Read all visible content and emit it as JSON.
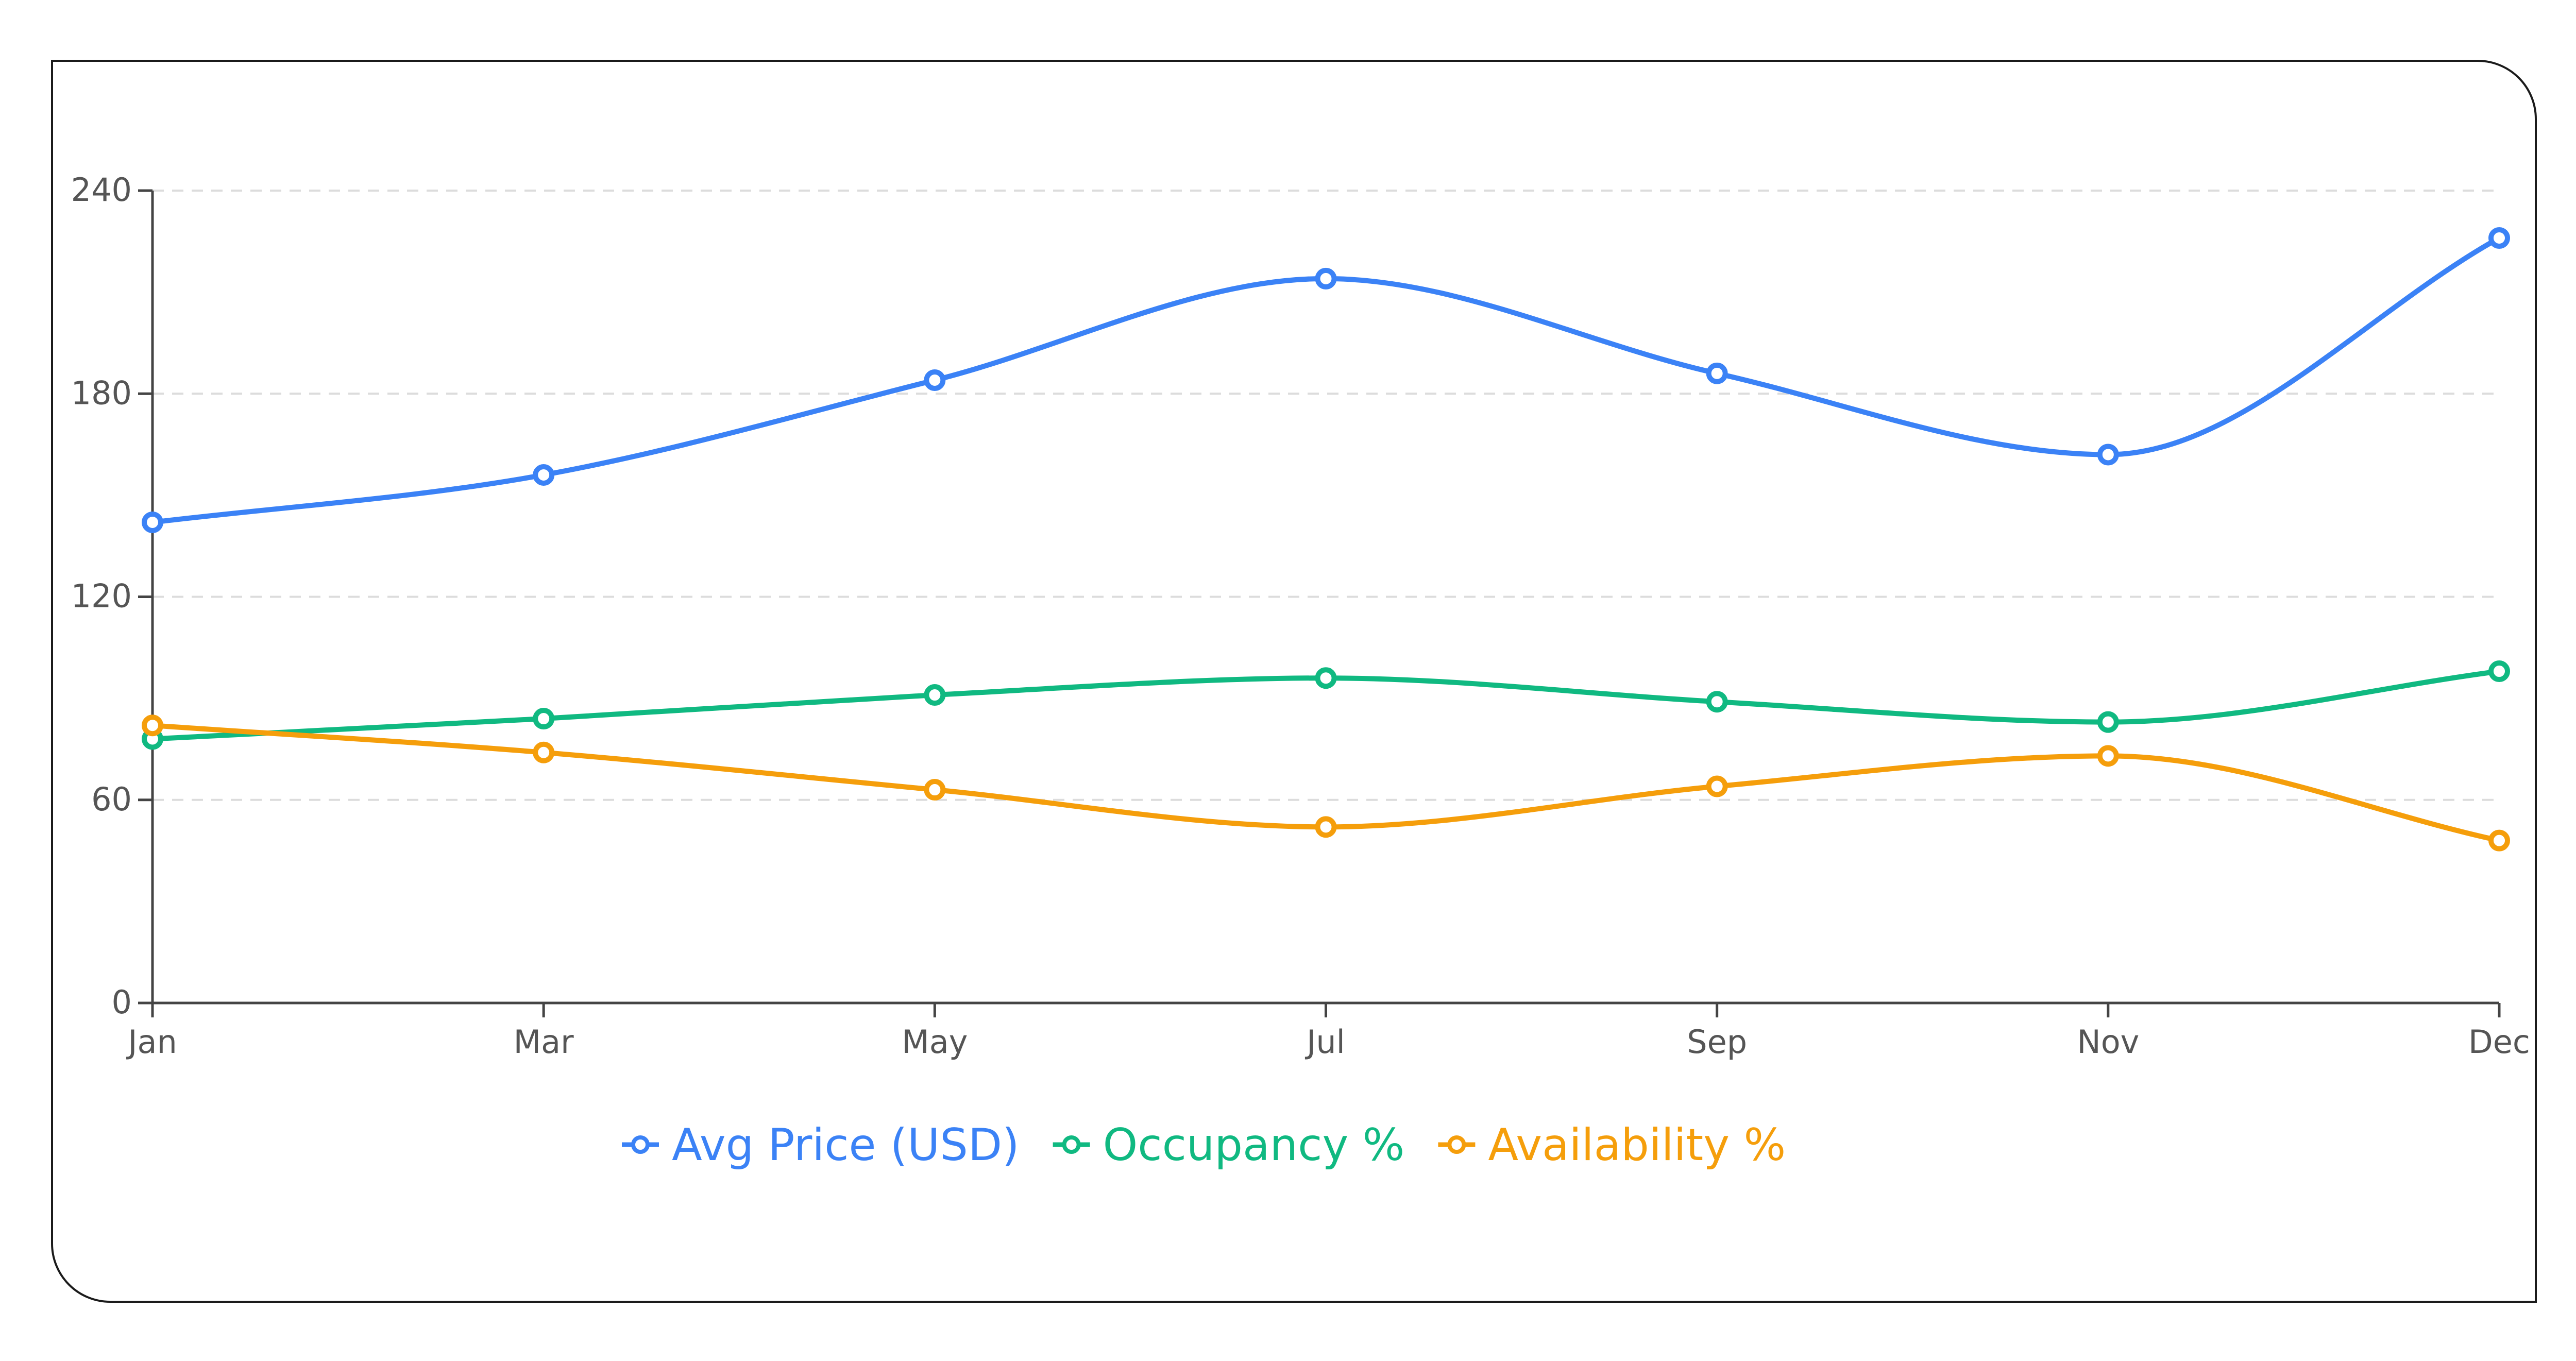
{
  "chart_data": {
    "type": "line",
    "categories": [
      "Jan",
      "Mar",
      "May",
      "Jul",
      "Sep",
      "Nov",
      "Dec"
    ],
    "ylim": [
      0,
      240
    ],
    "y_ticks": [
      "0",
      "60",
      "120",
      "180",
      "240"
    ],
    "grid": true,
    "legend_position": "bottom",
    "series": [
      {
        "name": "Avg Price (USD)",
        "color": "#3b82f6",
        "values": [
          142,
          156,
          184,
          214,
          186,
          162,
          226
        ]
      },
      {
        "name": "Occupancy %",
        "color": "#10b981",
        "values": [
          78,
          84,
          91,
          96,
          89,
          83,
          98
        ]
      },
      {
        "name": "Availability %",
        "color": "#f59e0b",
        "values": [
          82,
          74,
          63,
          52,
          64,
          73,
          48
        ]
      }
    ]
  }
}
